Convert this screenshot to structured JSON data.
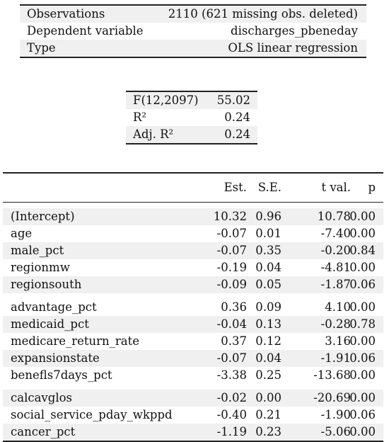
{
  "summary": {
    "rows": [
      {
        "label": "Observations",
        "value": "2110 (621 missing obs. deleted)"
      },
      {
        "label": "Dependent variable",
        "value": "discharges_pbeneday"
      },
      {
        "label": "Type",
        "value": "OLS linear regression"
      }
    ]
  },
  "fit": {
    "rows": [
      {
        "label": "F(12,2097)",
        "value": "55.02"
      },
      {
        "label": "R²",
        "value": "0.24"
      },
      {
        "label": "Adj. R²",
        "value": "0.24"
      }
    ]
  },
  "coef": {
    "headers": [
      "Est.",
      "S.E.",
      "t val.",
      "p"
    ],
    "groups": [
      [
        {
          "term": "(Intercept)",
          "est": "10.32",
          "se": "0.96",
          "t": "10.78",
          "p": "0.00"
        },
        {
          "term": "age",
          "est": "-0.07",
          "se": "0.01",
          "t": "-7.40",
          "p": "0.00"
        },
        {
          "term": "male_pct",
          "est": "-0.07",
          "se": "0.35",
          "t": "-0.20",
          "p": "0.84"
        },
        {
          "term": "regionmw",
          "est": "-0.19",
          "se": "0.04",
          "t": "-4.81",
          "p": "0.00"
        },
        {
          "term": "regionsouth",
          "est": "-0.09",
          "se": "0.05",
          "t": "-1.87",
          "p": "0.06"
        }
      ],
      [
        {
          "term": "advantage_pct",
          "est": "0.36",
          "se": "0.09",
          "t": "4.10",
          "p": "0.00"
        },
        {
          "term": "medicaid_pct",
          "est": "-0.04",
          "se": "0.13",
          "t": "-0.28",
          "p": "0.78"
        },
        {
          "term": "medicare_return_rate",
          "est": "0.37",
          "se": "0.12",
          "t": "3.16",
          "p": "0.00"
        },
        {
          "term": "expansionstate",
          "est": "-0.07",
          "se": "0.04",
          "t": "-1.91",
          "p": "0.06"
        },
        {
          "term": "benefls7days_pct",
          "est": "-3.38",
          "se": "0.25",
          "t": "-13.68",
          "p": "0.00"
        }
      ],
      [
        {
          "term": "calcavglos",
          "est": "-0.02",
          "se": "0.00",
          "t": "-20.69",
          "p": "0.00"
        },
        {
          "term": "social_service_pday_wkppd",
          "est": "-0.40",
          "se": "0.21",
          "t": "-1.90",
          "p": "0.06"
        },
        {
          "term": "cancer_pct",
          "est": "-1.19",
          "se": "0.23",
          "t": "-5.06",
          "p": "0.00"
        }
      ]
    ]
  }
}
